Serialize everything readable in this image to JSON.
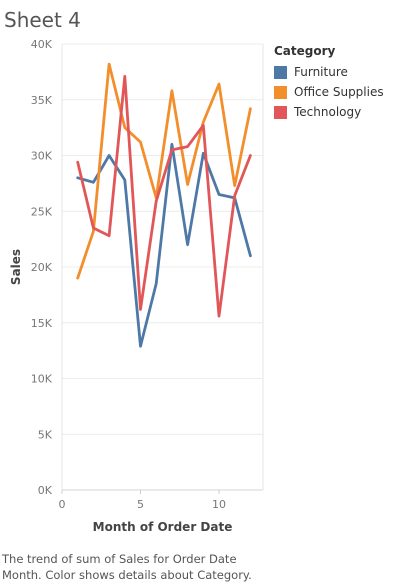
{
  "sheet": {
    "title": "Sheet 4"
  },
  "caption": "The trend of sum of Sales for Order Date Month.  Color shows details about Category.",
  "chart_data": {
    "type": "line",
    "x": [
      1,
      2,
      3,
      4,
      5,
      6,
      7,
      8,
      9,
      10,
      11,
      12
    ],
    "xlabel": "Month of Order Date",
    "ylabel": "Sales",
    "xlim": [
      0,
      12.8
    ],
    "ylim": [
      0,
      40000
    ],
    "xticks": [
      0,
      5,
      10
    ],
    "yticks": [
      0,
      5000,
      10000,
      15000,
      20000,
      25000,
      30000,
      35000,
      40000
    ],
    "ytick_labels": [
      "0K",
      "5K",
      "10K",
      "15K",
      "20K",
      "25K",
      "30K",
      "35K",
      "40K"
    ],
    "legend_title": "Category",
    "legend_position": "right",
    "grid": true,
    "series": [
      {
        "name": "Furniture",
        "color": "#4e79a7",
        "values": [
          28000,
          27600,
          30000,
          27800,
          12900,
          18500,
          31000,
          22000,
          30200,
          26500,
          26200,
          21000
        ]
      },
      {
        "name": "Office Supplies",
        "color": "#f28e2b",
        "values": [
          19000,
          23200,
          38200,
          32500,
          31200,
          26200,
          35800,
          27400,
          33000,
          36400,
          27300,
          34200
        ]
      },
      {
        "name": "Technology",
        "color": "#e15759",
        "values": [
          29400,
          23500,
          22800,
          37100,
          16200,
          25900,
          30500,
          30800,
          32700,
          15600,
          26400,
          30000
        ]
      }
    ]
  }
}
